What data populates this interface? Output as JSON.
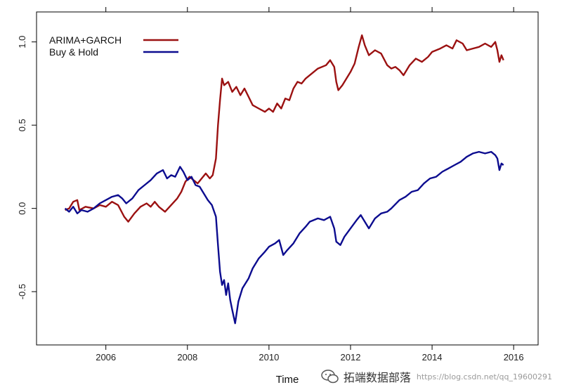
{
  "chart_data": {
    "type": "line",
    "title": "",
    "xlabel": "Time",
    "ylabel": "",
    "xlim": [
      2004.3,
      2016.6
    ],
    "ylim": [
      -0.82,
      1.18
    ],
    "x_ticks": [
      2006,
      2008,
      2010,
      2012,
      2014,
      2016
    ],
    "x_tick_labels": [
      "2006",
      "2008",
      "2010",
      "2012",
      "2014",
      "2016"
    ],
    "y_ticks": [
      -0.5,
      0.0,
      0.5,
      1.0
    ],
    "y_tick_labels": [
      "-0.5",
      "0.0",
      "0.5",
      "1.0"
    ],
    "legend_position": "top-left",
    "grid": false,
    "series": [
      {
        "name": "ARIMA+GARCH",
        "color": "#9b1111",
        "points": [
          [
            2005.0,
            -0.01
          ],
          [
            2005.1,
            0.0
          ],
          [
            2005.2,
            0.04
          ],
          [
            2005.3,
            0.05
          ],
          [
            2005.35,
            -0.01
          ],
          [
            2005.5,
            0.01
          ],
          [
            2005.7,
            0.0
          ],
          [
            2005.85,
            0.02
          ],
          [
            2006.0,
            0.01
          ],
          [
            2006.15,
            0.04
          ],
          [
            2006.3,
            0.02
          ],
          [
            2006.45,
            -0.05
          ],
          [
            2006.55,
            -0.08
          ],
          [
            2006.7,
            -0.03
          ],
          [
            2006.85,
            0.01
          ],
          [
            2007.0,
            0.03
          ],
          [
            2007.1,
            0.01
          ],
          [
            2007.2,
            0.04
          ],
          [
            2007.3,
            0.01
          ],
          [
            2007.45,
            -0.02
          ],
          [
            2007.6,
            0.02
          ],
          [
            2007.75,
            0.06
          ],
          [
            2007.85,
            0.1
          ],
          [
            2007.95,
            0.16
          ],
          [
            2008.05,
            0.19
          ],
          [
            2008.15,
            0.17
          ],
          [
            2008.25,
            0.15
          ],
          [
            2008.35,
            0.18
          ],
          [
            2008.45,
            0.21
          ],
          [
            2008.55,
            0.18
          ],
          [
            2008.62,
            0.2
          ],
          [
            2008.7,
            0.3
          ],
          [
            2008.75,
            0.5
          ],
          [
            2008.8,
            0.65
          ],
          [
            2008.85,
            0.78
          ],
          [
            2008.9,
            0.74
          ],
          [
            2009.0,
            0.76
          ],
          [
            2009.1,
            0.7
          ],
          [
            2009.2,
            0.73
          ],
          [
            2009.3,
            0.68
          ],
          [
            2009.4,
            0.72
          ],
          [
            2009.5,
            0.67
          ],
          [
            2009.6,
            0.62
          ],
          [
            2009.75,
            0.6
          ],
          [
            2009.9,
            0.58
          ],
          [
            2010.0,
            0.6
          ],
          [
            2010.1,
            0.58
          ],
          [
            2010.2,
            0.63
          ],
          [
            2010.3,
            0.6
          ],
          [
            2010.4,
            0.66
          ],
          [
            2010.5,
            0.65
          ],
          [
            2010.6,
            0.72
          ],
          [
            2010.7,
            0.76
          ],
          [
            2010.8,
            0.75
          ],
          [
            2010.9,
            0.78
          ],
          [
            2011.0,
            0.8
          ],
          [
            2011.2,
            0.84
          ],
          [
            2011.4,
            0.86
          ],
          [
            2011.5,
            0.89
          ],
          [
            2011.6,
            0.85
          ],
          [
            2011.65,
            0.76
          ],
          [
            2011.7,
            0.71
          ],
          [
            2011.8,
            0.74
          ],
          [
            2011.9,
            0.78
          ],
          [
            2012.0,
            0.82
          ],
          [
            2012.1,
            0.87
          ],
          [
            2012.2,
            0.97
          ],
          [
            2012.28,
            1.04
          ],
          [
            2012.35,
            0.98
          ],
          [
            2012.45,
            0.92
          ],
          [
            2012.6,
            0.95
          ],
          [
            2012.75,
            0.93
          ],
          [
            2012.9,
            0.86
          ],
          [
            2013.0,
            0.84
          ],
          [
            2013.1,
            0.85
          ],
          [
            2013.2,
            0.83
          ],
          [
            2013.3,
            0.8
          ],
          [
            2013.45,
            0.86
          ],
          [
            2013.6,
            0.9
          ],
          [
            2013.75,
            0.88
          ],
          [
            2013.9,
            0.91
          ],
          [
            2014.0,
            0.94
          ],
          [
            2014.2,
            0.96
          ],
          [
            2014.35,
            0.98
          ],
          [
            2014.5,
            0.96
          ],
          [
            2014.6,
            1.01
          ],
          [
            2014.75,
            0.99
          ],
          [
            2014.85,
            0.95
          ],
          [
            2015.0,
            0.96
          ],
          [
            2015.15,
            0.97
          ],
          [
            2015.3,
            0.99
          ],
          [
            2015.45,
            0.97
          ],
          [
            2015.55,
            1.0
          ],
          [
            2015.6,
            0.95
          ],
          [
            2015.65,
            0.88
          ],
          [
            2015.7,
            0.92
          ],
          [
            2015.75,
            0.89
          ]
        ]
      },
      {
        "name": "Buy & Hold",
        "color": "#0c0c8f",
        "points": [
          [
            2005.0,
            0.0
          ],
          [
            2005.1,
            -0.02
          ],
          [
            2005.2,
            0.01
          ],
          [
            2005.3,
            -0.03
          ],
          [
            2005.4,
            -0.01
          ],
          [
            2005.55,
            -0.02
          ],
          [
            2005.7,
            0.0
          ],
          [
            2005.85,
            0.03
          ],
          [
            2006.0,
            0.05
          ],
          [
            2006.15,
            0.07
          ],
          [
            2006.3,
            0.08
          ],
          [
            2006.4,
            0.06
          ],
          [
            2006.5,
            0.03
          ],
          [
            2006.65,
            0.06
          ],
          [
            2006.8,
            0.11
          ],
          [
            2006.95,
            0.14
          ],
          [
            2007.1,
            0.17
          ],
          [
            2007.25,
            0.21
          ],
          [
            2007.4,
            0.23
          ],
          [
            2007.5,
            0.18
          ],
          [
            2007.6,
            0.2
          ],
          [
            2007.7,
            0.19
          ],
          [
            2007.82,
            0.25
          ],
          [
            2007.9,
            0.22
          ],
          [
            2008.0,
            0.17
          ],
          [
            2008.1,
            0.19
          ],
          [
            2008.2,
            0.14
          ],
          [
            2008.3,
            0.13
          ],
          [
            2008.4,
            0.09
          ],
          [
            2008.5,
            0.05
          ],
          [
            2008.6,
            0.02
          ],
          [
            2008.7,
            -0.05
          ],
          [
            2008.75,
            -0.22
          ],
          [
            2008.8,
            -0.38
          ],
          [
            2008.85,
            -0.46
          ],
          [
            2008.9,
            -0.43
          ],
          [
            2008.95,
            -0.52
          ],
          [
            2009.0,
            -0.45
          ],
          [
            2009.05,
            -0.55
          ],
          [
            2009.1,
            -0.61
          ],
          [
            2009.17,
            -0.69
          ],
          [
            2009.25,
            -0.56
          ],
          [
            2009.35,
            -0.48
          ],
          [
            2009.5,
            -0.42
          ],
          [
            2009.6,
            -0.36
          ],
          [
            2009.75,
            -0.3
          ],
          [
            2009.9,
            -0.26
          ],
          [
            2010.0,
            -0.23
          ],
          [
            2010.15,
            -0.21
          ],
          [
            2010.25,
            -0.19
          ],
          [
            2010.35,
            -0.28
          ],
          [
            2010.45,
            -0.25
          ],
          [
            2010.6,
            -0.21
          ],
          [
            2010.75,
            -0.15
          ],
          [
            2010.9,
            -0.11
          ],
          [
            2011.0,
            -0.08
          ],
          [
            2011.2,
            -0.06
          ],
          [
            2011.35,
            -0.07
          ],
          [
            2011.5,
            -0.05
          ],
          [
            2011.6,
            -0.12
          ],
          [
            2011.65,
            -0.2
          ],
          [
            2011.75,
            -0.22
          ],
          [
            2011.85,
            -0.17
          ],
          [
            2012.0,
            -0.12
          ],
          [
            2012.15,
            -0.07
          ],
          [
            2012.25,
            -0.04
          ],
          [
            2012.35,
            -0.08
          ],
          [
            2012.45,
            -0.12
          ],
          [
            2012.6,
            -0.06
          ],
          [
            2012.75,
            -0.03
          ],
          [
            2012.9,
            -0.02
          ],
          [
            2013.0,
            0.0
          ],
          [
            2013.2,
            0.05
          ],
          [
            2013.35,
            0.07
          ],
          [
            2013.5,
            0.1
          ],
          [
            2013.65,
            0.11
          ],
          [
            2013.8,
            0.15
          ],
          [
            2013.95,
            0.18
          ],
          [
            2014.1,
            0.19
          ],
          [
            2014.25,
            0.22
          ],
          [
            2014.4,
            0.24
          ],
          [
            2014.55,
            0.26
          ],
          [
            2014.7,
            0.28
          ],
          [
            2014.85,
            0.31
          ],
          [
            2015.0,
            0.33
          ],
          [
            2015.15,
            0.34
          ],
          [
            2015.3,
            0.33
          ],
          [
            2015.45,
            0.34
          ],
          [
            2015.55,
            0.32
          ],
          [
            2015.6,
            0.3
          ],
          [
            2015.65,
            0.23
          ],
          [
            2015.7,
            0.27
          ],
          [
            2015.75,
            0.26
          ]
        ]
      }
    ]
  },
  "watermark": {
    "icon": "wechat-icon",
    "text": "拓端数据部落",
    "url": "https://blog.csdn.net/qq_19600291"
  }
}
